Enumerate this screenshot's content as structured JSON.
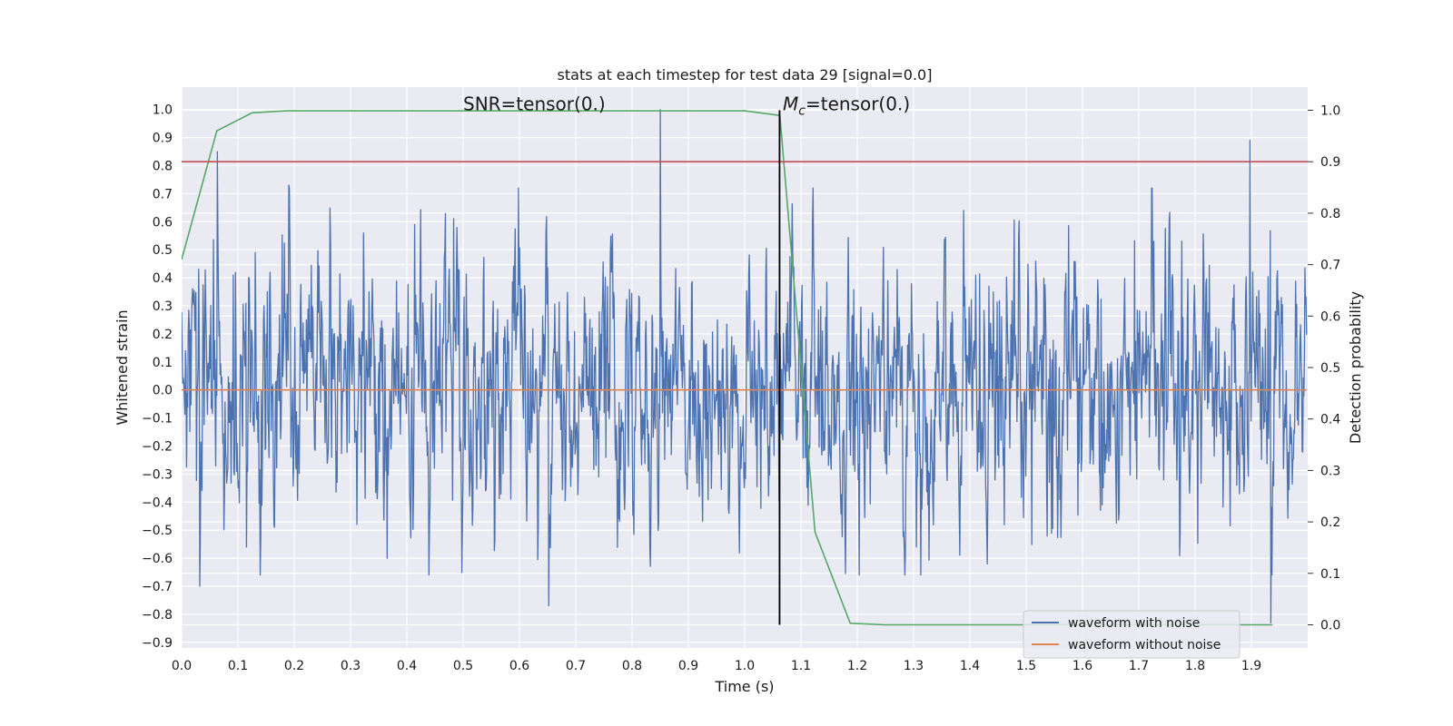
{
  "chart_data": {
    "type": "line",
    "title": "stats at each timestep for test data 29 [signal=0.0]",
    "xlabel": "Time (s)",
    "ylabel": "Whitened strain",
    "y2label": "Detection probability",
    "xlim": [
      0.0,
      2.0
    ],
    "ylim": [
      -0.92,
      1.08
    ],
    "y2lim": [
      -0.045,
      1.045
    ],
    "x_ticks": [
      0.0,
      0.1,
      0.2,
      0.3,
      0.4,
      0.5,
      0.6,
      0.7,
      0.8,
      0.9,
      1.0,
      1.1,
      1.2,
      1.3,
      1.4,
      1.5,
      1.6,
      1.7,
      1.8,
      1.9
    ],
    "x_tick_labels": [
      "0.0",
      "0.1",
      "0.2",
      "0.3",
      "0.4",
      "0.5",
      "0.6",
      "0.7",
      "0.8",
      "0.9",
      "1.0",
      "1.1",
      "1.2",
      "1.3",
      "1.4",
      "1.5",
      "1.6",
      "1.7",
      "1.8",
      "1.9"
    ],
    "y_ticks": [
      -0.9,
      -0.8,
      -0.7,
      -0.6,
      -0.5,
      -0.4,
      -0.3,
      -0.2,
      -0.1,
      0.0,
      0.1,
      0.2,
      0.3,
      0.4,
      0.5,
      0.6,
      0.7,
      0.8,
      0.9,
      1.0
    ],
    "y_tick_labels": [
      "−0.9",
      "−0.8",
      "−0.7",
      "−0.6",
      "−0.5",
      "−0.4",
      "−0.3",
      "−0.2",
      "−0.1",
      "0.0",
      "0.1",
      "0.2",
      "0.3",
      "0.4",
      "0.5",
      "0.6",
      "0.7",
      "0.8",
      "0.9",
      "1.0"
    ],
    "y2_ticks": [
      0.0,
      0.1,
      0.2,
      0.3,
      0.4,
      0.5,
      0.6,
      0.7,
      0.8,
      0.9,
      1.0
    ],
    "y2_tick_labels": [
      "0.0",
      "0.1",
      "0.2",
      "0.3",
      "0.4",
      "0.5",
      "0.6",
      "0.7",
      "0.8",
      "0.9",
      "1.0"
    ],
    "grid": true,
    "legend_position": "lower-right",
    "annotations": {
      "snr": {
        "text": "SNR=tensor(0.)",
        "x": 0.5,
        "y": 1.0
      },
      "mc": {
        "symbol": "M",
        "subscript": "c",
        "text": "=tensor(0.)",
        "x": 1.1,
        "y": 1.0
      }
    },
    "series": [
      {
        "name": "waveform with noise",
        "axis": "left",
        "style": "noise",
        "color": "#4c72b0",
        "x_range": [
          0.0,
          1.998
        ],
        "amplitude_std": 0.22,
        "spikes": [
          {
            "x": 0.063,
            "y": 0.85
          },
          {
            "x": 0.032,
            "y": -0.7
          },
          {
            "x": 0.85,
            "y": 1.0
          },
          {
            "x": 0.652,
            "y": -0.77
          },
          {
            "x": 1.897,
            "y": 0.89
          },
          {
            "x": 1.935,
            "y": -0.83
          },
          {
            "x": 0.19,
            "y": 0.73
          },
          {
            "x": 0.115,
            "y": -0.56
          },
          {
            "x": 0.365,
            "y": -0.6
          }
        ]
      },
      {
        "name": "waveform without noise",
        "axis": "left",
        "style": "line",
        "color": "#dd8452",
        "x": [
          0.0,
          1.998
        ],
        "y": [
          0.0,
          0.0
        ]
      },
      {
        "axis": "right",
        "style": "line",
        "color": "#55a868",
        "x": [
          0.0,
          0.0625,
          0.125,
          0.1875,
          0.25,
          0.5,
          1.0,
          1.0625,
          1.125,
          1.1875,
          1.25,
          1.5,
          1.75,
          1.9375
        ],
        "y": [
          0.71,
          0.96,
          0.995,
          0.999,
          0.999,
          0.999,
          0.999,
          0.99,
          0.18,
          0.003,
          0.0,
          0.0,
          0.0,
          0.0
        ]
      },
      {
        "axis": "right",
        "style": "hline",
        "color": "#c44e52",
        "y": 0.9
      },
      {
        "axis": "right",
        "style": "vline",
        "color": "#000000",
        "x": 1.062,
        "y_range": [
          0.0,
          1.0
        ]
      }
    ]
  }
}
